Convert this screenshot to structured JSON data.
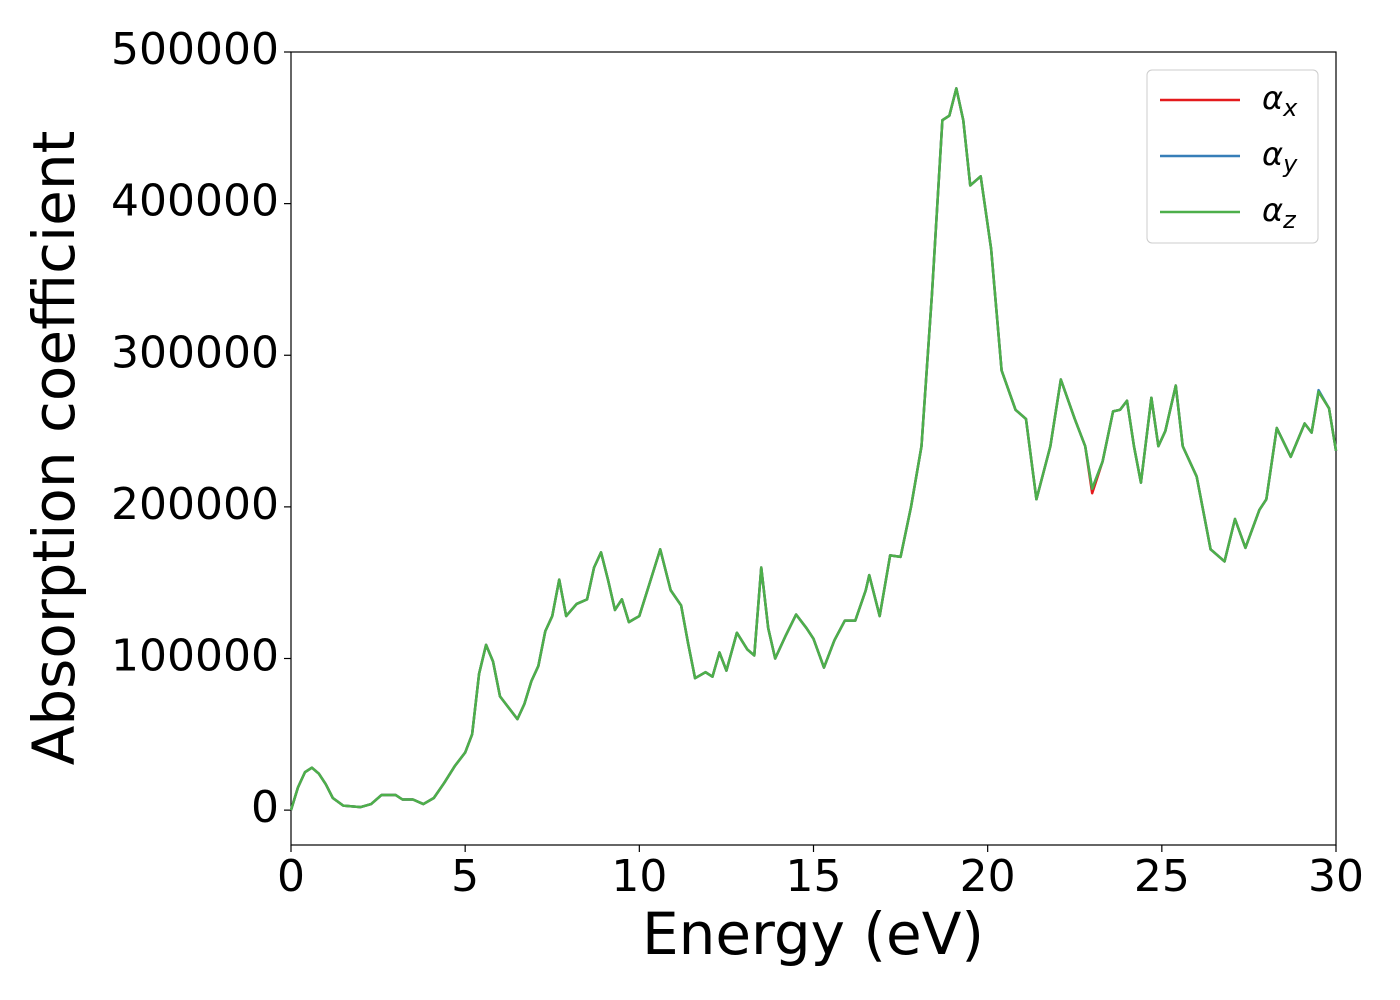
{
  "chart_data": {
    "type": "line",
    "xlabel": "Energy (eV)",
    "ylabel": "Absorption coefficient",
    "xlim": [
      0,
      30
    ],
    "ylim": [
      -23000,
      500000
    ],
    "xticks": [
      0,
      5,
      10,
      15,
      20,
      25,
      30
    ],
    "yticks": [
      0,
      100000,
      200000,
      300000,
      400000,
      500000
    ],
    "legend": "upper right",
    "grid": false,
    "x": [
      0,
      0.2,
      0.4,
      0.6,
      0.8,
      1.0,
      1.2,
      1.5,
      2.0,
      2.3,
      2.6,
      3.0,
      3.2,
      3.5,
      3.8,
      4.1,
      4.4,
      4.7,
      5.0,
      5.2,
      5.4,
      5.6,
      5.8,
      6.0,
      6.2,
      6.5,
      6.7,
      6.9,
      7.1,
      7.3,
      7.5,
      7.7,
      7.9,
      8.2,
      8.5,
      8.7,
      8.9,
      9.1,
      9.3,
      9.5,
      9.7,
      10.0,
      10.3,
      10.6,
      10.9,
      11.2,
      11.4,
      11.6,
      11.9,
      12.1,
      12.3,
      12.5,
      12.8,
      13.1,
      13.3,
      13.5,
      13.7,
      13.9,
      14.2,
      14.5,
      14.8,
      15.0,
      15.3,
      15.6,
      15.9,
      16.2,
      16.5,
      16.6,
      16.9,
      17.2,
      17.5,
      17.8,
      18.1,
      18.4,
      18.7,
      18.9,
      19.1,
      19.3,
      19.5,
      19.8,
      20.1,
      20.4,
      20.8,
      21.1,
      21.4,
      21.8,
      22.1,
      22.5,
      22.8,
      23.0,
      23.3,
      23.6,
      23.8,
      24.0,
      24.2,
      24.4,
      24.7,
      24.9,
      25.1,
      25.4,
      25.6,
      26.0,
      26.4,
      26.8,
      27.1,
      27.4,
      27.8,
      28.0,
      28.3,
      28.7,
      29.1,
      29.3,
      29.5,
      29.8,
      30.0
    ],
    "series": [
      {
        "name": "αx",
        "color": "#e41a1c",
        "values": [
          0,
          15000,
          25000,
          28000,
          24000,
          17000,
          8000,
          3000,
          2000,
          4000,
          10000,
          10000,
          7000,
          7000,
          4000,
          8000,
          18000,
          29000,
          38000,
          50000,
          90000,
          109000,
          98000,
          75000,
          69000,
          60000,
          70000,
          85000,
          95000,
          118000,
          128000,
          152000,
          128000,
          136000,
          139000,
          160000,
          170000,
          152000,
          132000,
          139000,
          124000,
          128000,
          150000,
          172000,
          145000,
          135000,
          110000,
          87000,
          91000,
          88000,
          104000,
          92000,
          117000,
          106000,
          102000,
          160000,
          120000,
          100000,
          115000,
          129000,
          120000,
          113000,
          94000,
          112000,
          125000,
          125000,
          145000,
          155000,
          128000,
          168000,
          167000,
          200000,
          240000,
          340000,
          455000,
          458000,
          476000,
          455000,
          412000,
          418000,
          370000,
          290000,
          264000,
          258000,
          205000,
          240000,
          284000,
          258000,
          240000,
          209000,
          230000,
          263000,
          264000,
          270000,
          240000,
          216000,
          272000,
          240000,
          250000,
          280000,
          240000,
          220000,
          172000,
          164000,
          192000,
          173000,
          198000,
          205000,
          252000,
          233000,
          255000,
          249000,
          276000,
          265000,
          237000
        ]
      },
      {
        "name": "αy",
        "color": "#377eb8",
        "values": [
          0,
          15000,
          25000,
          28000,
          24000,
          17000,
          8000,
          3000,
          2000,
          4000,
          10000,
          10000,
          7000,
          7000,
          4000,
          8000,
          18000,
          29000,
          38000,
          50000,
          90000,
          109000,
          98000,
          75000,
          69000,
          60000,
          70000,
          85000,
          95000,
          118000,
          128000,
          152000,
          128000,
          136000,
          139000,
          160000,
          170000,
          152000,
          132000,
          139000,
          124000,
          128000,
          150000,
          172000,
          145000,
          135000,
          110000,
          87000,
          91000,
          88000,
          104000,
          92000,
          117000,
          106000,
          102000,
          160000,
          120000,
          100000,
          115000,
          129000,
          120000,
          113000,
          94000,
          112000,
          125000,
          125000,
          145000,
          155000,
          128000,
          168000,
          167000,
          200000,
          240000,
          340000,
          455000,
          458000,
          476000,
          455000,
          412000,
          418000,
          370000,
          290000,
          264000,
          258000,
          205000,
          240000,
          284000,
          258000,
          240000,
          212000,
          230000,
          263000,
          264000,
          270000,
          240000,
          216000,
          272000,
          240000,
          250000,
          280000,
          240000,
          220000,
          172000,
          164000,
          192000,
          173000,
          198000,
          205000,
          252000,
          233000,
          255000,
          249000,
          277000,
          265000,
          237000
        ]
      },
      {
        "name": "αz",
        "color": "#4daf4a",
        "values": [
          0,
          15000,
          25000,
          28000,
          24000,
          17000,
          8000,
          3000,
          2000,
          4000,
          10000,
          10000,
          7000,
          7000,
          4000,
          8000,
          18000,
          29000,
          38000,
          50000,
          90000,
          109000,
          98000,
          75000,
          69000,
          60000,
          70000,
          85000,
          95000,
          118000,
          128000,
          152000,
          128000,
          136000,
          139000,
          160000,
          170000,
          152000,
          132000,
          139000,
          124000,
          128000,
          150000,
          172000,
          145000,
          135000,
          110000,
          87000,
          91000,
          88000,
          104000,
          92000,
          117000,
          106000,
          102000,
          160000,
          120000,
          100000,
          115000,
          129000,
          120000,
          113000,
          94000,
          112000,
          125000,
          125000,
          145000,
          155000,
          128000,
          168000,
          167000,
          200000,
          240000,
          340000,
          455000,
          458000,
          476000,
          455000,
          412000,
          418000,
          370000,
          290000,
          264000,
          258000,
          205000,
          240000,
          284000,
          258000,
          240000,
          212000,
          230000,
          263000,
          264000,
          270000,
          240000,
          216000,
          272000,
          240000,
          250000,
          280000,
          240000,
          220000,
          172000,
          164000,
          192000,
          173000,
          198000,
          205000,
          252000,
          233000,
          255000,
          249000,
          276000,
          265000,
          237000
        ]
      }
    ]
  }
}
